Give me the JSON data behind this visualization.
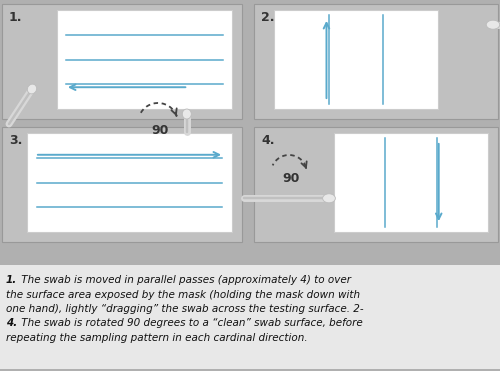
{
  "bg_color": "#b0b0b0",
  "panel_color": "#c0c0c0",
  "white_box_color": "#ffffff",
  "blue_arrow_color": "#5aaacc",
  "caption_text": "1. The swab is moved in parallel passes (approximately 4) to over\nthe surface area exposed by the mask (holding the mask down with\none hand), lightly “dragging” the swab across the testing surface. 2-\n4. The swab is rotated 90 degrees to a “clean” swab surface, before\nrepeating the sampling pattern in each cardinal direction.",
  "panel_labels": [
    "1.",
    "2.",
    "3.",
    "4."
  ],
  "fig_width": 5.0,
  "fig_height": 3.71,
  "dpi": 100
}
